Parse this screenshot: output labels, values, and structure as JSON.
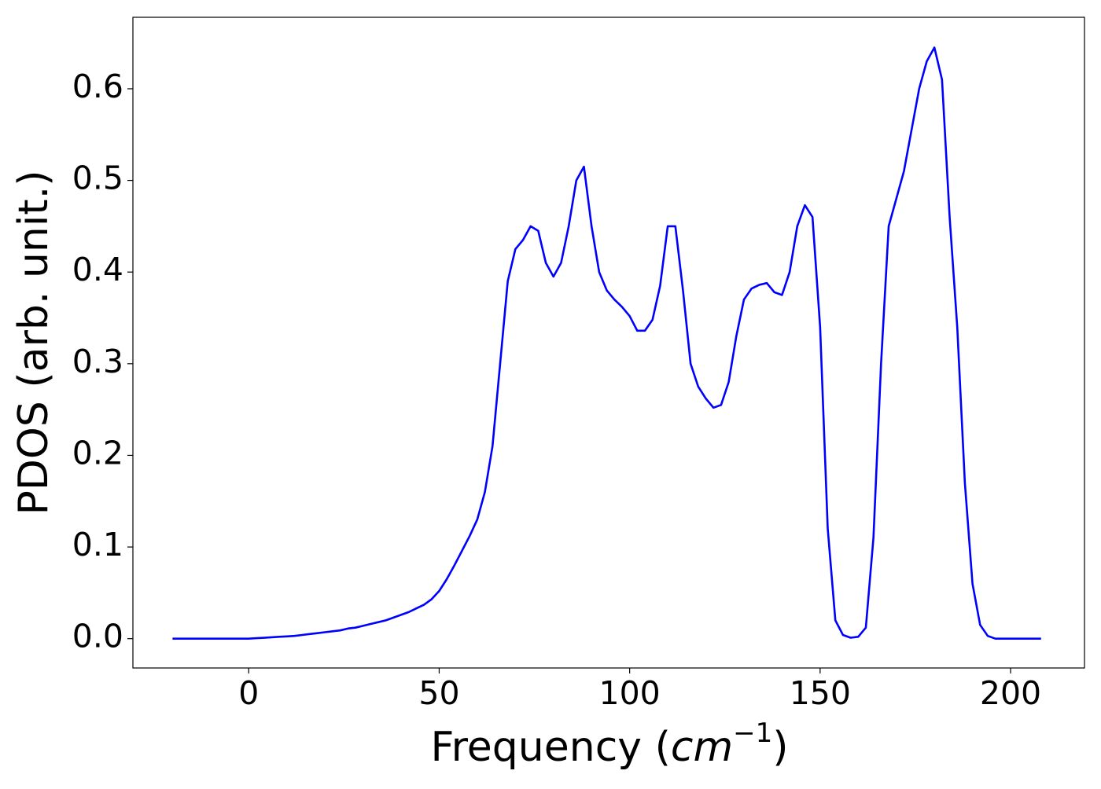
{
  "chart_data": {
    "type": "line",
    "xlabel": [
      "Frequency (",
      "cm",
      "−1",
      ")"
    ],
    "ylabel": "PDOS (arb. unit.)",
    "x": [
      -20,
      -18,
      -16,
      -14,
      -12,
      -10,
      -8,
      -6,
      -4,
      -2,
      0,
      2,
      4,
      6,
      8,
      10,
      12,
      14,
      16,
      18,
      20,
      22,
      24,
      26,
      28,
      30,
      32,
      34,
      36,
      38,
      40,
      42,
      44,
      46,
      48,
      50,
      52,
      54,
      56,
      58,
      60,
      62,
      64,
      66,
      68,
      70,
      72,
      74,
      76,
      78,
      80,
      82,
      84,
      86,
      88,
      90,
      92,
      94,
      96,
      98,
      100,
      102,
      104,
      106,
      108,
      110,
      112,
      114,
      116,
      118,
      120,
      122,
      124,
      126,
      128,
      130,
      132,
      134,
      136,
      138,
      140,
      142,
      144,
      146,
      148,
      150,
      152,
      154,
      156,
      158,
      160,
      162,
      164,
      166,
      168,
      170,
      172,
      174,
      176,
      178,
      180,
      182,
      184,
      186,
      188,
      190,
      192,
      194,
      196,
      198,
      200,
      202,
      204,
      206,
      208
    ],
    "series": [
      {
        "name": "PDOS",
        "color": "#0000ff",
        "values": [
          0,
          0,
          0,
          0,
          0,
          0,
          0,
          0,
          0,
          0,
          0,
          0.0005,
          0.001,
          0.0015,
          0.002,
          0.0025,
          0.003,
          0.004,
          0.005,
          0.006,
          0.007,
          0.008,
          0.009,
          0.011,
          0.012,
          0.014,
          0.016,
          0.018,
          0.02,
          0.023,
          0.026,
          0.029,
          0.033,
          0.037,
          0.043,
          0.052,
          0.065,
          0.08,
          0.096,
          0.112,
          0.13,
          0.16,
          0.21,
          0.3,
          0.39,
          0.425,
          0.435,
          0.45,
          0.445,
          0.41,
          0.395,
          0.41,
          0.45,
          0.5,
          0.515,
          0.45,
          0.4,
          0.38,
          0.37,
          0.362,
          0.352,
          0.336,
          0.336,
          0.348,
          0.385,
          0.45,
          0.45,
          0.38,
          0.3,
          0.275,
          0.262,
          0.252,
          0.255,
          0.28,
          0.33,
          0.37,
          0.382,
          0.386,
          0.388,
          0.378,
          0.375,
          0.4,
          0.45,
          0.473,
          0.46,
          0.34,
          0.12,
          0.02,
          0.004,
          0.001,
          0.002,
          0.012,
          0.11,
          0.3,
          0.45,
          0.48,
          0.51,
          0.555,
          0.6,
          0.63,
          0.645,
          0.61,
          0.46,
          0.34,
          0.17,
          0.06,
          0.015,
          0.003,
          0,
          0,
          0,
          0,
          0,
          0,
          0
        ]
      }
    ],
    "xlim": [
      -30.4,
      219.4
    ],
    "ylim": [
      -0.032,
      0.678
    ],
    "xticks": [
      0,
      50,
      100,
      150,
      200
    ],
    "yticks": [
      {
        "value": 0,
        "label": "0.0"
      },
      0.1,
      0.2,
      0.3,
      0.4,
      0.5,
      0.6
    ]
  }
}
